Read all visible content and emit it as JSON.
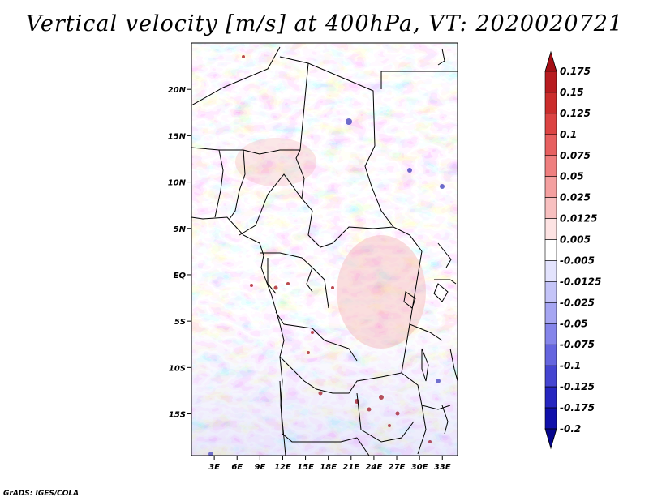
{
  "title": "Vertical velocity [m/s] at 400hPa, VT: 2020020721",
  "credit": "GrADS: IGES/COLA",
  "map": {
    "lon_range": [
      0,
      35
    ],
    "lat_range": [
      -19.5,
      25
    ],
    "x_ticks": [
      "3E",
      "6E",
      "9E",
      "12E",
      "15E",
      "18E",
      "21E",
      "24E",
      "27E",
      "30E",
      "33E"
    ],
    "x_tick_values": [
      3,
      6,
      9,
      12,
      15,
      18,
      21,
      24,
      27,
      30,
      33
    ],
    "y_ticks": [
      "20N",
      "15N",
      "10N",
      "5N",
      "EQ",
      "5S",
      "10S",
      "15S"
    ],
    "y_tick_values": [
      20,
      15,
      10,
      5,
      0,
      -5,
      -10,
      -15
    ]
  },
  "colorbar": {
    "labels": [
      "0.175",
      "0.15",
      "0.125",
      "0.1",
      "0.075",
      "0.05",
      "0.025",
      "0.0125",
      "0.005",
      "-0.005",
      "-0.0125",
      "-0.025",
      "-0.05",
      "-0.075",
      "-0.1",
      "-0.125",
      "-0.175",
      "-0.2"
    ],
    "colors": [
      "#a50f15",
      "#b81c20",
      "#cb2d2c",
      "#dc4443",
      "#e76060",
      "#ef7f7f",
      "#f4a0a0",
      "#f8c0c0",
      "#fde3e3",
      "#ffffff",
      "#e3e3fd",
      "#c4c4f8",
      "#a6a6f2",
      "#8585ea",
      "#6565df",
      "#4545d1",
      "#2626c0",
      "#1010aa",
      "#06068e"
    ]
  }
}
